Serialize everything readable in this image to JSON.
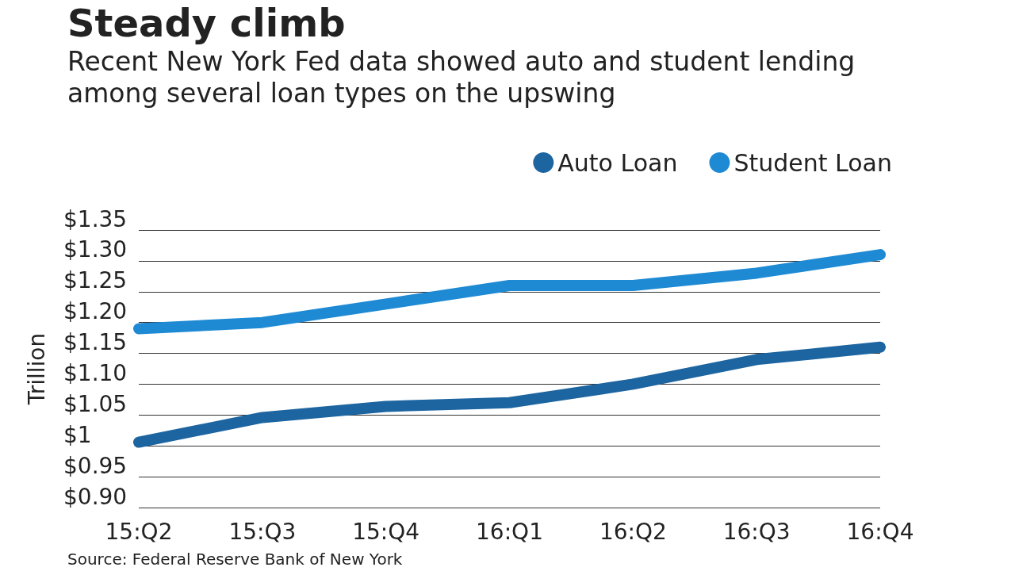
{
  "chart_data": {
    "type": "line",
    "title": "Steady climb",
    "subtitle": "Recent New York Fed data showed auto and student lending among several loan types on the upswing",
    "ylabel": "Trillion",
    "annotations": [
      "Source: Federal Reserve Bank of New York"
    ],
    "categories": [
      "15:Q2",
      "15:Q3",
      "15:Q4",
      "16:Q1",
      "16:Q2",
      "16:Q3",
      "16:Q4"
    ],
    "series": [
      {
        "name": "Auto Loan",
        "color": "#1d65a0",
        "values": [
          1.006,
          1.046,
          1.064,
          1.07,
          1.1,
          1.14,
          1.16
        ]
      },
      {
        "name": "Student Loan",
        "color": "#1f8ad4",
        "values": [
          1.19,
          1.2,
          1.23,
          1.26,
          1.26,
          1.28,
          1.31
        ]
      }
    ],
    "ylim": [
      0.9,
      1.35
    ],
    "yticks": [
      {
        "value": 0.9,
        "label": "$0.90"
      },
      {
        "value": 0.95,
        "label": "$0.95"
      },
      {
        "value": 1.0,
        "label": "$1"
      },
      {
        "value": 1.05,
        "label": "$1.05"
      },
      {
        "value": 1.1,
        "label": "$1.10"
      },
      {
        "value": 1.15,
        "label": "$1.15"
      },
      {
        "value": 1.2,
        "label": "$1.20"
      },
      {
        "value": 1.25,
        "label": "$1.25"
      },
      {
        "value": 1.3,
        "label": "$1.30"
      },
      {
        "value": 1.35,
        "label": "$1.35"
      }
    ],
    "grid": "y",
    "legend": "top right",
    "line_style": "solid"
  }
}
